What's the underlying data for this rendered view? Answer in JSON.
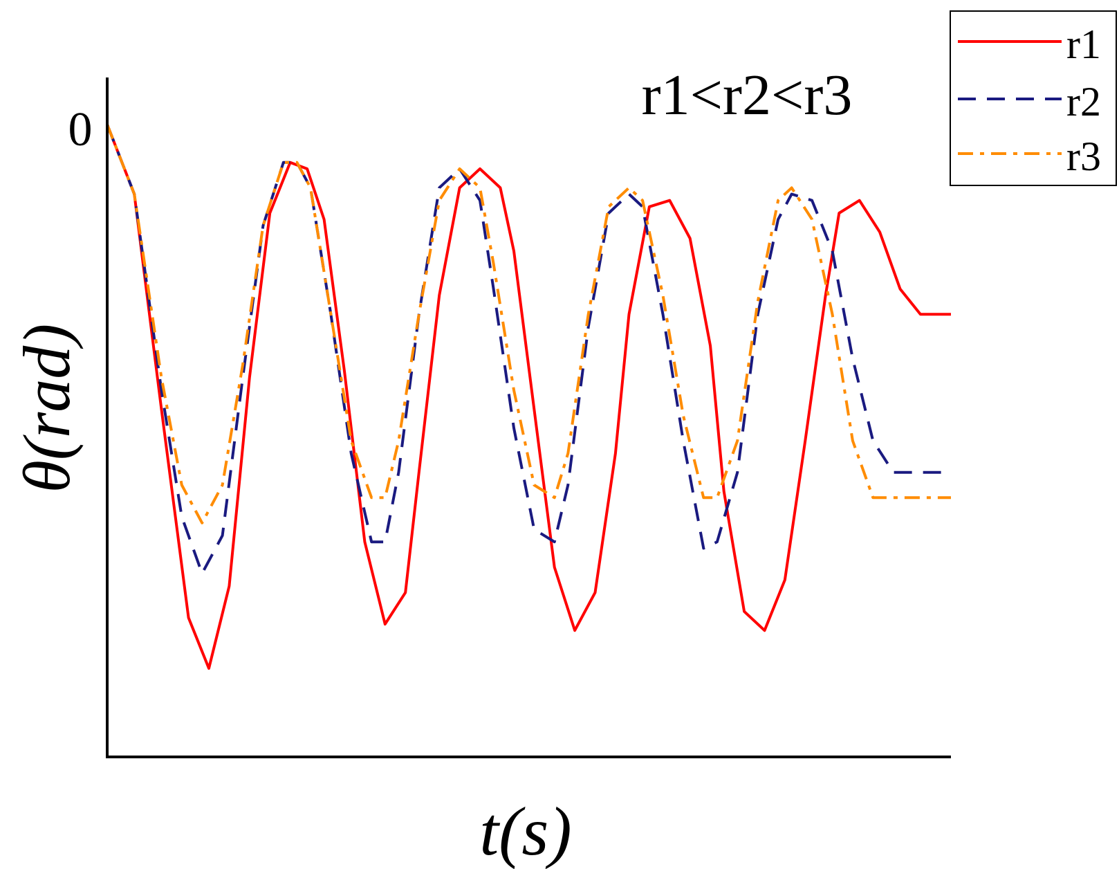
{
  "chart_data": {
    "type": "line",
    "title": "",
    "annotation": "r1<r2<r3",
    "xlabel": "t(s)",
    "ylabel": "θ(rad)",
    "y_tick_labels": [
      "0"
    ],
    "ylim": [
      -1.0,
      0.0
    ],
    "xlim": [
      0,
      12.45
    ],
    "grid": false,
    "legend_position": "top-right",
    "series": [
      {
        "name": "r1",
        "color": "#ff0000",
        "dash": "solid",
        "x": [
          0,
          0.4,
          0.8,
          1.2,
          1.5,
          1.8,
          2.1,
          2.4,
          2.7,
          2.95,
          3.2,
          3.5,
          3.8,
          4.1,
          4.4,
          4.6,
          4.9,
          5.2,
          5.5,
          5.8,
          6.0,
          6.3,
          6.6,
          6.9,
          7.2,
          7.5,
          7.7,
          8.0,
          8.3,
          8.6,
          8.9,
          9.1,
          9.4,
          9.7,
          10.0,
          10.3,
          10.6,
          10.8,
          11.1,
          11.4,
          11.7,
          12.0,
          12.2,
          12.45
        ],
        "y": [
          0.0,
          -0.11,
          -0.45,
          -0.78,
          -0.86,
          -0.73,
          -0.4,
          -0.14,
          -0.06,
          -0.07,
          -0.15,
          -0.39,
          -0.66,
          -0.79,
          -0.74,
          -0.55,
          -0.27,
          -0.1,
          -0.07,
          -0.1,
          -0.2,
          -0.45,
          -0.7,
          -0.8,
          -0.74,
          -0.52,
          -0.3,
          -0.13,
          -0.12,
          -0.18,
          -0.35,
          -0.58,
          -0.77,
          -0.8,
          -0.72,
          -0.5,
          -0.27,
          -0.14,
          -0.12,
          -0.17,
          -0.26,
          -0.3,
          -0.3,
          -0.3
        ]
      },
      {
        "name": "r2",
        "color": "#1a1a80",
        "dash": "dashed",
        "x": [
          0,
          0.4,
          0.8,
          1.1,
          1.4,
          1.7,
          2.0,
          2.3,
          2.6,
          2.8,
          3.0,
          3.3,
          3.6,
          3.9,
          4.1,
          4.3,
          4.6,
          4.9,
          5.2,
          5.5,
          5.7,
          6.0,
          6.3,
          6.6,
          6.8,
          7.1,
          7.4,
          7.7,
          7.9,
          8.2,
          8.5,
          8.8,
          9.0,
          9.3,
          9.6,
          9.9,
          10.1,
          10.4,
          10.7,
          11.0,
          11.3,
          11.6,
          11.9,
          12.2,
          12.45
        ],
        "y": [
          0.0,
          -0.11,
          -0.42,
          -0.62,
          -0.71,
          -0.65,
          -0.4,
          -0.16,
          -0.06,
          -0.06,
          -0.1,
          -0.3,
          -0.52,
          -0.66,
          -0.66,
          -0.55,
          -0.3,
          -0.1,
          -0.07,
          -0.12,
          -0.26,
          -0.48,
          -0.64,
          -0.66,
          -0.57,
          -0.32,
          -0.14,
          -0.11,
          -0.13,
          -0.3,
          -0.5,
          -0.67,
          -0.66,
          -0.55,
          -0.3,
          -0.15,
          -0.11,
          -0.12,
          -0.2,
          -0.37,
          -0.5,
          -0.55,
          -0.55,
          -0.55,
          -0.55
        ]
      },
      {
        "name": "r3",
        "color": "#ff8c00",
        "dash": "dashdot",
        "x": [
          0,
          0.4,
          0.8,
          1.1,
          1.4,
          1.7,
          2.0,
          2.3,
          2.6,
          2.8,
          3.0,
          3.3,
          3.6,
          3.9,
          4.1,
          4.3,
          4.6,
          4.9,
          5.2,
          5.5,
          5.7,
          6.0,
          6.3,
          6.6,
          6.8,
          7.1,
          7.4,
          7.7,
          7.9,
          8.2,
          8.5,
          8.8,
          9.0,
          9.3,
          9.6,
          9.9,
          10.1,
          10.4,
          10.7,
          11.0,
          11.3,
          11.6,
          11.9,
          12.2,
          12.45
        ],
        "y": [
          0.0,
          -0.11,
          -0.4,
          -0.57,
          -0.63,
          -0.57,
          -0.38,
          -0.16,
          -0.06,
          -0.06,
          -0.1,
          -0.3,
          -0.5,
          -0.59,
          -0.59,
          -0.5,
          -0.3,
          -0.12,
          -0.07,
          -0.1,
          -0.22,
          -0.42,
          -0.57,
          -0.59,
          -0.52,
          -0.3,
          -0.13,
          -0.1,
          -0.12,
          -0.27,
          -0.46,
          -0.59,
          -0.59,
          -0.5,
          -0.28,
          -0.12,
          -0.1,
          -0.15,
          -0.3,
          -0.5,
          -0.59,
          -0.59,
          -0.59,
          -0.59,
          -0.59
        ]
      }
    ]
  }
}
